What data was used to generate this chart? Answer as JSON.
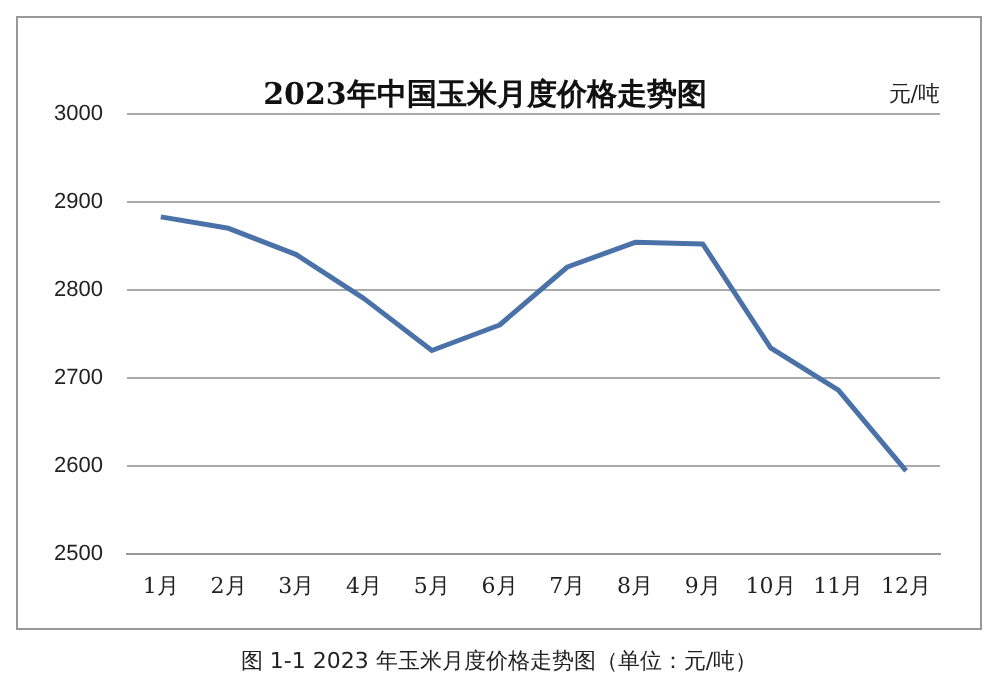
{
  "chart_data": {
    "type": "line",
    "title": "2023年中国玉米月度价格走势图",
    "ylabel": "元/吨",
    "categories": [
      "1月",
      "2月",
      "3月",
      "4月",
      "5月",
      "6月",
      "7月",
      "8月",
      "9月",
      "10月",
      "11月",
      "12月"
    ],
    "series": [
      {
        "color": "#4a72a8",
        "values": [
          2883,
          2870,
          2840,
          2790,
          2731,
          2760,
          2826,
          2854,
          2852,
          2734,
          2686,
          2594
        ]
      }
    ],
    "ylim": [
      2500,
      3000
    ],
    "yticks": [
      2500,
      2600,
      2700,
      2800,
      2900,
      3000
    ],
    "grid": "y",
    "marker": "none",
    "line_style": "solid",
    "legend": false,
    "annotations": [
      "图 1-1 2023 年玉米月度价格走势图（单位：元/吨）"
    ]
  }
}
